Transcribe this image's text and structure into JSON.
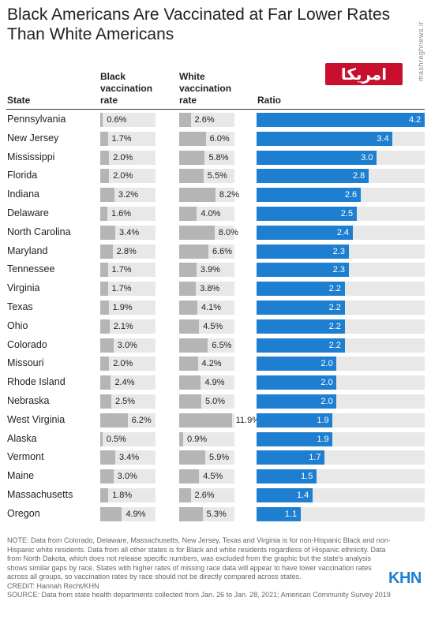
{
  "title": "Black Americans Are Vaccinated at Far Lower Rates Than White Americans",
  "watermark_logo": "امریکا",
  "side_watermark": "mashreghnews.ir",
  "columns": {
    "state": "State",
    "black": "Black vaccination rate",
    "white": "White vaccination rate",
    "ratio": "Ratio"
  },
  "colors": {
    "ratio_bar": "#1e7fd0",
    "rate_bar": "#b5b5b5",
    "track": "#e8e8e8"
  },
  "chart_data": {
    "type": "table",
    "title": "Black Americans Are Vaccinated at Far Lower Rates Than White Americans",
    "rows": [
      {
        "state": "Pennsylvania",
        "black": 0.6,
        "white": 2.6,
        "ratio": 4.2,
        "black_label": "0.6%",
        "white_label": "2.6%",
        "ratio_label": "4.2"
      },
      {
        "state": "New Jersey",
        "black": 1.7,
        "white": 6.0,
        "ratio": 3.4,
        "black_label": "1.7%",
        "white_label": "6.0%",
        "ratio_label": "3.4"
      },
      {
        "state": "Mississippi",
        "black": 2.0,
        "white": 5.8,
        "ratio": 3.0,
        "black_label": "2.0%",
        "white_label": "5.8%",
        "ratio_label": "3.0"
      },
      {
        "state": "Florida",
        "black": 2.0,
        "white": 5.5,
        "ratio": 2.8,
        "black_label": "2.0%",
        "white_label": "5.5%",
        "ratio_label": "2.8"
      },
      {
        "state": "Indiana",
        "black": 3.2,
        "white": 8.2,
        "ratio": 2.6,
        "black_label": "3.2%",
        "white_label": "8.2%",
        "ratio_label": "2.6"
      },
      {
        "state": "Delaware",
        "black": 1.6,
        "white": 4.0,
        "ratio": 2.5,
        "black_label": "1.6%",
        "white_label": "4.0%",
        "ratio_label": "2.5"
      },
      {
        "state": "North Carolina",
        "black": 3.4,
        "white": 8.0,
        "ratio": 2.4,
        "black_label": "3.4%",
        "white_label": "8.0%",
        "ratio_label": "2.4"
      },
      {
        "state": "Maryland",
        "black": 2.8,
        "white": 6.6,
        "ratio": 2.3,
        "black_label": "2.8%",
        "white_label": "6.6%",
        "ratio_label": "2.3"
      },
      {
        "state": "Tennessee",
        "black": 1.7,
        "white": 3.9,
        "ratio": 2.3,
        "black_label": "1.7%",
        "white_label": "3.9%",
        "ratio_label": "2.3"
      },
      {
        "state": "Virginia",
        "black": 1.7,
        "white": 3.8,
        "ratio": 2.2,
        "black_label": "1.7%",
        "white_label": "3.8%",
        "ratio_label": "2.2"
      },
      {
        "state": "Texas",
        "black": 1.9,
        "white": 4.1,
        "ratio": 2.2,
        "black_label": "1.9%",
        "white_label": "4.1%",
        "ratio_label": "2.2"
      },
      {
        "state": "Ohio",
        "black": 2.1,
        "white": 4.5,
        "ratio": 2.2,
        "black_label": "2.1%",
        "white_label": "4.5%",
        "ratio_label": "2.2"
      },
      {
        "state": "Colorado",
        "black": 3.0,
        "white": 6.5,
        "ratio": 2.2,
        "black_label": "3.0%",
        "white_label": "6.5%",
        "ratio_label": "2.2"
      },
      {
        "state": "Missouri",
        "black": 2.0,
        "white": 4.2,
        "ratio": 2.0,
        "black_label": "2.0%",
        "white_label": "4.2%",
        "ratio_label": "2.0"
      },
      {
        "state": "Rhode Island",
        "black": 2.4,
        "white": 4.9,
        "ratio": 2.0,
        "black_label": "2.4%",
        "white_label": "4.9%",
        "ratio_label": "2.0"
      },
      {
        "state": "Nebraska",
        "black": 2.5,
        "white": 5.0,
        "ratio": 2.0,
        "black_label": "2.5%",
        "white_label": "5.0%",
        "ratio_label": "2.0"
      },
      {
        "state": "West Virginia",
        "black": 6.2,
        "white": 11.9,
        "ratio": 1.9,
        "black_label": "6.2%",
        "white_label": "11.9%",
        "ratio_label": "1.9"
      },
      {
        "state": "Alaska",
        "black": 0.5,
        "white": 0.9,
        "ratio": 1.9,
        "black_label": "0.5%",
        "white_label": "0.9%",
        "ratio_label": "1.9"
      },
      {
        "state": "Vermont",
        "black": 3.4,
        "white": 5.9,
        "ratio": 1.7,
        "black_label": "3.4%",
        "white_label": "5.9%",
        "ratio_label": "1.7"
      },
      {
        "state": "Maine",
        "black": 3.0,
        "white": 4.5,
        "ratio": 1.5,
        "black_label": "3.0%",
        "white_label": "4.5%",
        "ratio_label": "1.5"
      },
      {
        "state": "Massachusetts",
        "black": 1.8,
        "white": 2.6,
        "ratio": 1.4,
        "black_label": "1.8%",
        "white_label": "2.6%",
        "ratio_label": "1.4"
      },
      {
        "state": "Oregon",
        "black": 4.9,
        "white": 5.3,
        "ratio": 1.1,
        "black_label": "4.9%",
        "white_label": "5.3%",
        "ratio_label": "1.1"
      }
    ],
    "rate_max": 12.5,
    "ratio_max": 4.2
  },
  "notes": {
    "note": "NOTE: Data from Colorado, Delaware, Massachusetts, New Jersey, Texas and Virginia is for non-Hispanic Black and non-Hispanic white residents. Data from all other states is for Black and white residents regardless of Hispanic ethnicity. Data from North Dakota, which does not release specific numbers, was excluded from the graphic but the state's analysis shows similar gaps by race. States with higher rates of missing race data will appear to have lower vaccination rates across all groups, so vaccination rates by race should not be directly compared across states.",
    "credit": "CREDIT: Hannah Recht/KHN",
    "source": "SOURCE: Data from state health departments collected from Jan. 26 to Jan. 28, 2021; American Community Survey 2019"
  },
  "brand": "KHN"
}
